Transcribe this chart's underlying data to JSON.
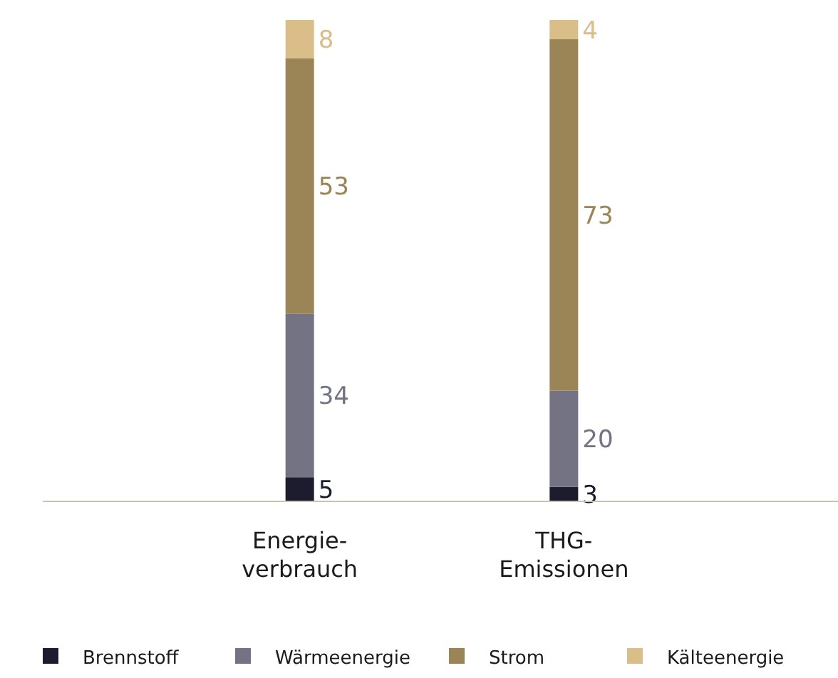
{
  "chart_data": {
    "type": "bar",
    "stacked": true,
    "data_labels": true,
    "legend": "bottom",
    "categories": [
      "Energie-verbrauch",
      "THG-Emissionen"
    ],
    "series": [
      {
        "name": "Brennstoff",
        "color": "#1c1c2e",
        "values": [
          5,
          3
        ]
      },
      {
        "name": "Wärmeenergie",
        "color": "#737384",
        "values": [
          34,
          20
        ]
      },
      {
        "name": "Strom",
        "color": "#9b8455",
        "values": [
          53,
          73
        ]
      },
      {
        "name": "Kälteenergie",
        "color": "#d9be8a",
        "values": [
          8,
          4
        ]
      }
    ]
  }
}
